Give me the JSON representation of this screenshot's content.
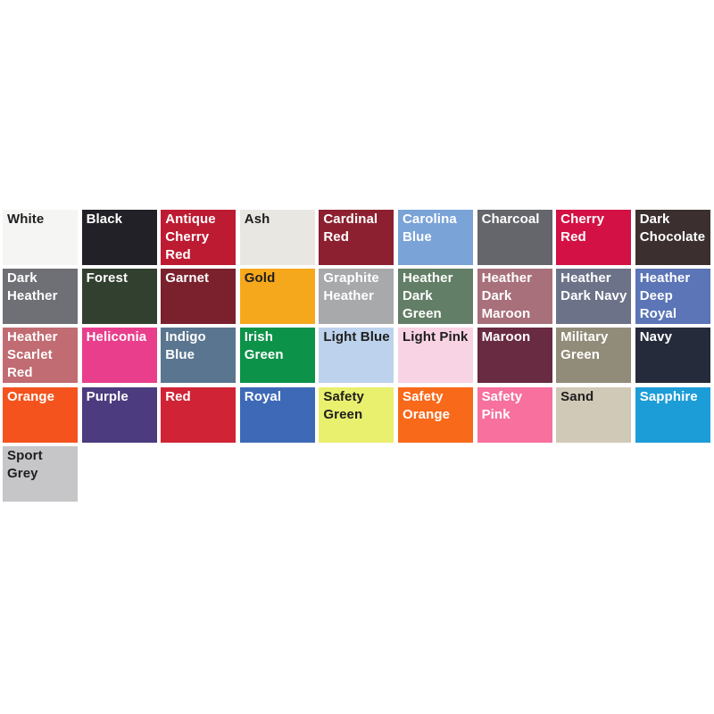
{
  "page": {
    "background": "#ffffff",
    "dark_label_color": "#1e1e1e",
    "light_label_color": "#ffffff"
  },
  "swatches": [
    {
      "label": "White",
      "color": "#f5f5f4",
      "text_color": "#1e1e1e"
    },
    {
      "label": "Black",
      "color": "#222127",
      "text_color": "#ffffff"
    },
    {
      "label": "Antique Cherry Red",
      "color": "#bd1b32",
      "text_color": "#ffffff"
    },
    {
      "label": "Ash",
      "color": "#e9e7e2",
      "text_color": "#1e1e1e"
    },
    {
      "label": "Cardinal Red",
      "color": "#8d2030",
      "text_color": "#ffffff"
    },
    {
      "label": "Carolina Blue",
      "color": "#7aa3d7",
      "text_color": "#ffffff"
    },
    {
      "label": "Charcoal",
      "color": "#65666b",
      "text_color": "#ffffff"
    },
    {
      "label": "Cherry Red",
      "color": "#d31145",
      "text_color": "#ffffff"
    },
    {
      "label": "Dark Chocolate",
      "color": "#3b302f",
      "text_color": "#ffffff"
    },
    {
      "label": "Dark Heather",
      "color": "#6f7075",
      "text_color": "#ffffff"
    },
    {
      "label": "Forest",
      "color": "#32402f",
      "text_color": "#ffffff"
    },
    {
      "label": "Garnet",
      "color": "#7b212e",
      "text_color": "#ffffff"
    },
    {
      "label": "Gold",
      "color": "#f6a81c",
      "text_color": "#1e1e1e"
    },
    {
      "label": "Graphite Heather",
      "color": "#a7a9aa",
      "text_color": "#ffffff"
    },
    {
      "label": "Heather Dark Green",
      "color": "#627e66",
      "text_color": "#ffffff"
    },
    {
      "label": "Heather Dark Maroon",
      "color": "#a8707b",
      "text_color": "#ffffff"
    },
    {
      "label": "Heather Dark Navy",
      "color": "#6c7288",
      "text_color": "#ffffff"
    },
    {
      "label": "Heather Deep Royal",
      "color": "#5b75b6",
      "text_color": "#ffffff"
    },
    {
      "label": "Heather Scarlet Red",
      "color": "#c16c72",
      "text_color": "#ffffff"
    },
    {
      "label": "Heliconia",
      "color": "#e83e8c",
      "text_color": "#ffffff"
    },
    {
      "label": "Indigo Blue",
      "color": "#5a758f",
      "text_color": "#ffffff"
    },
    {
      "label": "Irish Green",
      "color": "#0d9249",
      "text_color": "#ffffff"
    },
    {
      "label": "Light Blue",
      "color": "#bdd2ec",
      "text_color": "#1e1e1e"
    },
    {
      "label": "Light Pink",
      "color": "#f8d3e3",
      "text_color": "#1e1e1e"
    },
    {
      "label": "Maroon",
      "color": "#692b41",
      "text_color": "#ffffff"
    },
    {
      "label": "Military Green",
      "color": "#918b79",
      "text_color": "#ffffff"
    },
    {
      "label": "Navy",
      "color": "#262b3b",
      "text_color": "#ffffff"
    },
    {
      "label": "Orange",
      "color": "#f5531e",
      "text_color": "#ffffff"
    },
    {
      "label": "Purple",
      "color": "#4c3b7e",
      "text_color": "#ffffff"
    },
    {
      "label": "Red",
      "color": "#d02335",
      "text_color": "#ffffff"
    },
    {
      "label": "Royal",
      "color": "#3e69b7",
      "text_color": "#ffffff"
    },
    {
      "label": "Safety Green",
      "color": "#e9f06d",
      "text_color": "#1e1e1e"
    },
    {
      "label": "Safety Orange",
      "color": "#f8691a",
      "text_color": "#ffffff"
    },
    {
      "label": "Safety Pink",
      "color": "#f7709e",
      "text_color": "#ffffff"
    },
    {
      "label": "Sand",
      "color": "#d1c9b7",
      "text_color": "#1e1e1e"
    },
    {
      "label": "Sapphire",
      "color": "#1d9dd8",
      "text_color": "#ffffff"
    },
    {
      "label": "Sport Grey",
      "color": "#c6c5c7",
      "text_color": "#1e1e1e"
    }
  ]
}
